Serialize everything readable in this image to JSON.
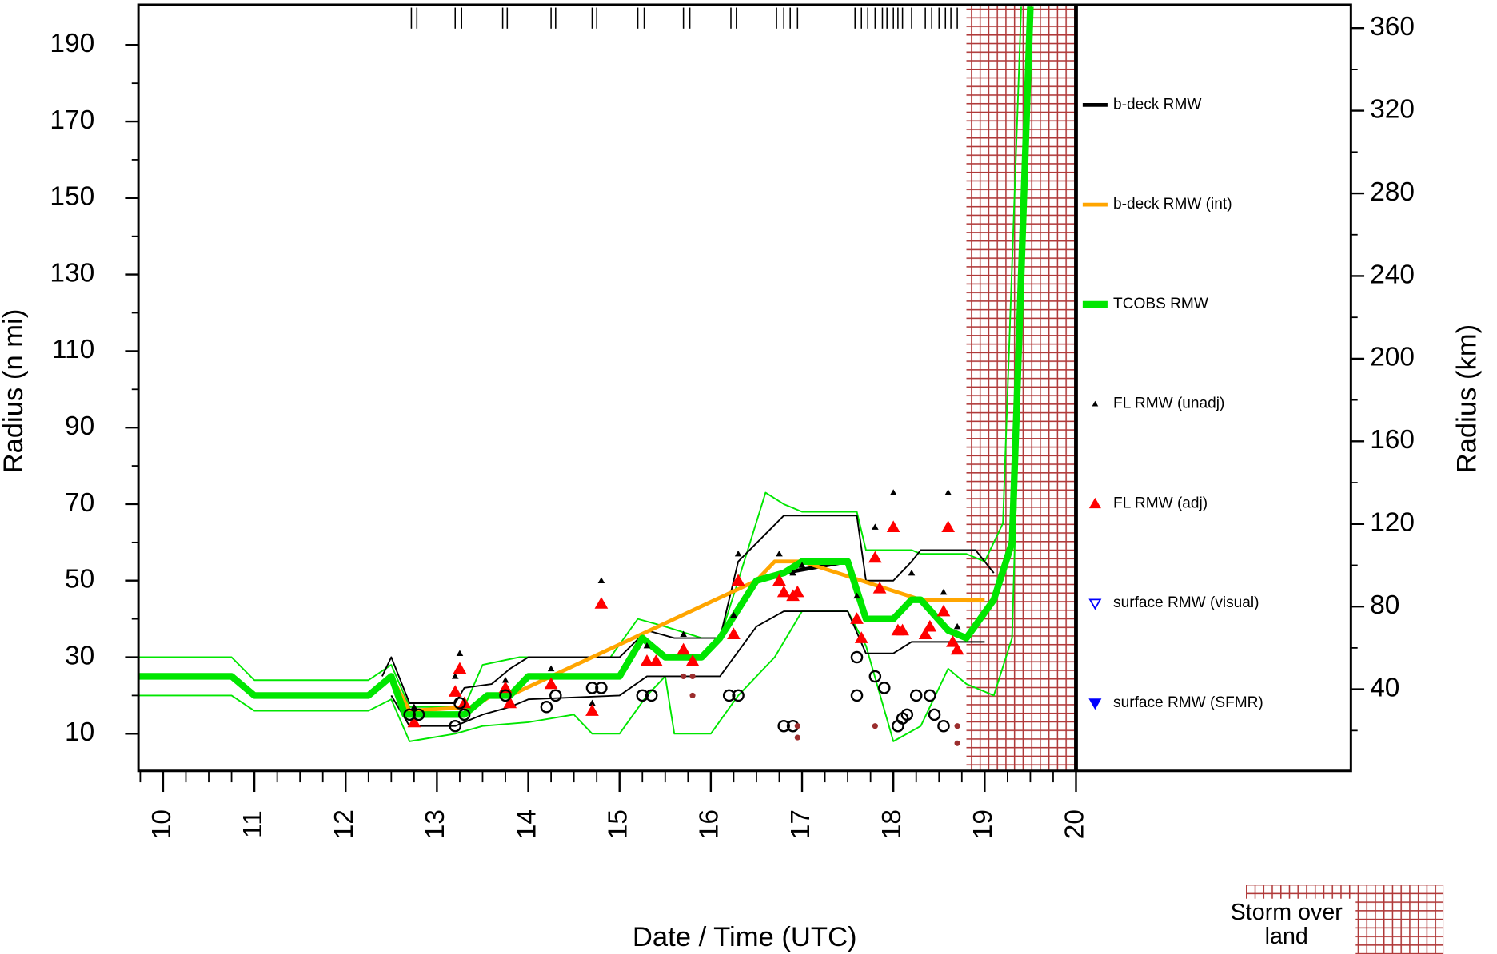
{
  "chart_data": {
    "type": "line",
    "x_label": "Date / Time (UTC)",
    "y_label": "Radius (n mi)",
    "y2_label": "Radius (km)",
    "xlim": [
      9.73,
      20
    ],
    "xticks": [
      10,
      11,
      12,
      13,
      14,
      15,
      16,
      17,
      18,
      19,
      20
    ],
    "ylim": [
      0.3,
      200.5
    ],
    "yticks": [
      10,
      30,
      50,
      70,
      90,
      110,
      130,
      150,
      170,
      190
    ],
    "y2lim": [
      0.5,
      371.3
    ],
    "y2ticks": [
      40,
      80,
      120,
      160,
      200,
      240,
      280,
      320,
      360
    ],
    "land_x": [
      18.8,
      20
    ],
    "land_label": "Storm over land",
    "land_color": "#b03a3a",
    "rug_x": [
      12.72,
      12.78,
      13.2,
      13.27,
      13.72,
      13.77,
      14.25,
      14.3,
      14.7,
      14.75,
      15.2,
      15.27,
      15.7,
      15.77,
      16.22,
      16.28,
      16.72,
      16.8,
      16.87,
      16.95,
      17.58,
      17.65,
      17.72,
      17.8,
      17.88,
      17.93,
      18.0,
      18.05,
      18.1,
      18.2,
      18.35,
      18.42,
      18.5,
      18.57,
      18.63,
      18.7
    ],
    "series": [
      {
        "color": "#00e600",
        "line": "thin",
        "x": [
          9.73,
          10.75,
          11,
          12.25,
          12.5,
          12.7,
          13.3,
          13.5,
          13.9,
          14.1,
          14.9,
          15.2,
          15.5,
          15.9,
          16.1,
          16.3,
          16.6,
          16.8,
          17.0,
          17.6,
          17.7,
          18.2,
          18.3,
          18.8,
          19.0,
          19.2,
          19.4
        ],
        "values": [
          30,
          30,
          24,
          24,
          28,
          17,
          17,
          28,
          30,
          30,
          30,
          40,
          38,
          35,
          35,
          50,
          73,
          70,
          68,
          68,
          58,
          58,
          57,
          57,
          55,
          65,
          200
        ]
      },
      {
        "color": "#00e600",
        "line": "thin",
        "x": [
          9.73,
          10.75,
          11,
          12.25,
          12.5,
          12.7,
          13.2,
          13.5,
          14.0,
          14.5,
          14.7,
          15.0,
          15.3,
          15.5,
          15.6,
          16.0,
          16.3,
          16.7,
          17.0,
          17.5,
          17.7,
          18.0,
          18.3,
          18.6,
          18.8,
          19.1,
          19.3,
          19.5
        ],
        "values": [
          20,
          20,
          16,
          16,
          19,
          8,
          10,
          12,
          13,
          15,
          10,
          10,
          20,
          25,
          10,
          10,
          20,
          30,
          42,
          42,
          33,
          8,
          12,
          27,
          23,
          20,
          35,
          200
        ]
      },
      {
        "color": "#000000",
        "line": "thin",
        "x": [
          12.4,
          12.5,
          12.7,
          13.2,
          13.3,
          13.6,
          13.8,
          14.0,
          15.0,
          15.3,
          15.6,
          16.1,
          16.3,
          16.8,
          17.0,
          17.6,
          17.7,
          18.0,
          18.2,
          18.3,
          18.9,
          19.1
        ],
        "values": [
          25,
          30,
          18,
          18,
          22,
          23,
          27,
          30,
          30,
          37,
          35,
          35,
          55,
          67,
          67,
          67,
          50,
          50,
          55,
          58,
          58,
          52
        ]
      },
      {
        "color": "#000000",
        "line": "thin",
        "x": [
          12.5,
          12.7,
          13.2,
          13.5,
          13.8,
          14.0,
          15.0,
          15.3,
          15.6,
          16.1,
          16.5,
          16.8,
          17.0,
          17.5,
          17.7,
          18.0,
          18.2,
          18.5,
          19.0
        ],
        "values": [
          20,
          12,
          12,
          15,
          17,
          19,
          20,
          25,
          25,
          25,
          38,
          42,
          42,
          42,
          31,
          31,
          34,
          34,
          34
        ]
      },
      {
        "name": "b-deck RMW",
        "color": "#000000",
        "line": "medium",
        "x": [
          9.73,
          10.75,
          11,
          12.25,
          12.5,
          12.7,
          13.3,
          13.55,
          13.8,
          14.0,
          15.0,
          15.25,
          15.5,
          15.9,
          16.1,
          16.5,
          16.8,
          17.5,
          17.7,
          18.0,
          18.2,
          18.3,
          18.6,
          18.8,
          19.1,
          19.3,
          19.5
        ],
        "values": [
          25,
          25,
          20,
          20,
          25,
          15,
          15,
          20,
          20,
          25,
          25,
          35,
          30,
          30,
          35,
          50,
          52,
          55,
          40,
          40,
          45,
          45,
          37,
          35,
          45,
          60,
          200
        ]
      },
      {
        "name": "b-deck RMW (int)",
        "color": "#ffa500",
        "line": "medium",
        "x": [
          12.4,
          12.5,
          12.7,
          13.4,
          13.6,
          13.8,
          16.5,
          16.7,
          17.0,
          18.3,
          18.4,
          19.0
        ],
        "values": [
          23,
          25,
          16,
          17,
          20,
          20,
          50,
          55,
          55,
          45,
          45,
          45
        ]
      },
      {
        "name": "TCOBS RMW",
        "color": "#00e600",
        "line": "thick",
        "x": [
          9.73,
          10.75,
          11,
          12.25,
          12.5,
          12.65,
          13.3,
          13.55,
          13.8,
          14.0,
          14.5,
          15.0,
          15.25,
          15.5,
          15.9,
          16.1,
          16.5,
          16.8,
          17.0,
          17.5,
          17.7,
          18.0,
          18.2,
          18.3,
          18.6,
          18.8,
          19.1,
          19.3,
          19.5
        ],
        "values": [
          25,
          25,
          20,
          20,
          25,
          15,
          15,
          20,
          20,
          25,
          25,
          25,
          35,
          30,
          30,
          35,
          50,
          52,
          55,
          55,
          40,
          40,
          45,
          45,
          37,
          35,
          45,
          60,
          200
        ]
      },
      {
        "name": "FL RMW (unadj)",
        "color": "#000000",
        "marker": "triangle-small",
        "x": [
          12.75,
          13.2,
          13.25,
          13.75,
          14.25,
          14.7,
          14.8,
          15.3,
          15.7,
          16.25,
          16.3,
          16.75,
          16.9,
          17.0,
          17.6,
          17.8,
          18.0,
          18.2,
          18.55,
          18.6,
          18.7
        ],
        "values": [
          17,
          25,
          31,
          24,
          27,
          18,
          50,
          33,
          36,
          41,
          57,
          57,
          52,
          54,
          46,
          64,
          73,
          52,
          47,
          73,
          38
        ]
      },
      {
        "name": "FL RMW (adj)",
        "color": "#ff0000",
        "marker": "triangle",
        "x": [
          12.75,
          13.2,
          13.25,
          13.3,
          13.75,
          13.8,
          14.25,
          14.7,
          14.8,
          15.3,
          15.4,
          15.7,
          15.8,
          16.25,
          16.3,
          16.75,
          16.8,
          16.9,
          16.95,
          17.6,
          17.65,
          17.8,
          17.85,
          18.0,
          18.05,
          18.1,
          18.35,
          18.4,
          18.55,
          18.6,
          18.65,
          18.7
        ],
        "values": [
          13,
          21,
          27,
          18,
          22,
          18,
          23,
          16,
          44,
          29,
          29,
          32,
          29,
          36,
          50,
          50,
          47,
          46,
          47,
          40,
          35,
          56,
          48,
          64,
          37,
          37,
          36,
          38,
          42,
          64,
          34,
          32
        ]
      },
      {
        "name": "surface RMW (visual)",
        "color": "#0000ff",
        "marker": "triangle-open-down",
        "x": [],
        "values": []
      },
      {
        "name": "surface RMW (SFMR)",
        "color": "#0000ff",
        "marker": "triangle-down",
        "x": [],
        "values": []
      },
      {
        "color": "#000000",
        "marker": "circle",
        "x": [
          12.7,
          12.8,
          13.2,
          13.25,
          13.3,
          13.75,
          14.2,
          14.3,
          14.7,
          14.8,
          15.25,
          15.35,
          16.2,
          16.3,
          16.8,
          16.9,
          17.6,
          17.6,
          17.8,
          17.9,
          18.05,
          18.1,
          18.15,
          18.25,
          18.4,
          18.45,
          18.55
        ],
        "values": [
          15,
          15,
          12,
          18,
          15,
          20,
          17,
          20,
          22,
          22,
          20,
          20,
          20,
          20,
          12,
          12,
          30,
          20,
          25,
          22,
          12,
          14,
          15,
          20,
          20,
          15,
          12
        ]
      },
      {
        "color": "#9b2d2d",
        "marker": "dot",
        "x": [
          15.7,
          15.8,
          15.8,
          16.95,
          16.95,
          17.8,
          18.7,
          18.7
        ],
        "values": [
          25,
          25,
          20,
          12,
          9,
          12,
          12,
          7.5
        ]
      }
    ]
  }
}
